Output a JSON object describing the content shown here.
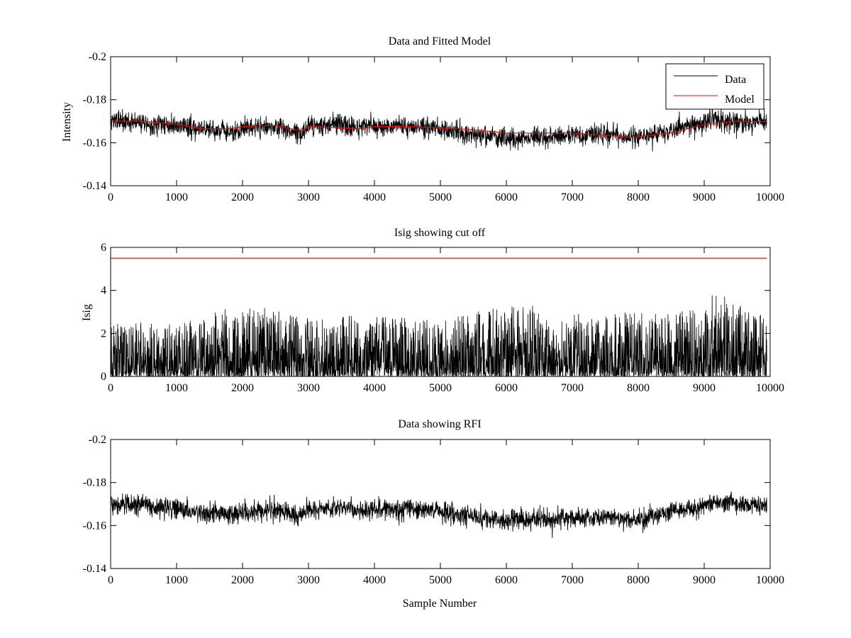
{
  "figure": {
    "background": "#ffffff",
    "data_color": "#000000",
    "model_color": "#ff0000"
  },
  "chart_data": [
    {
      "type": "line",
      "title": "Data and Fitted Model",
      "xlabel": "",
      "ylabel": "Intensity",
      "xlim": [
        0,
        10000
      ],
      "ylim": [
        -0.2,
        -0.14
      ],
      "y_reversed": true,
      "x_ticks": [
        "0",
        "1000",
        "2000",
        "3000",
        "4000",
        "5000",
        "6000",
        "7000",
        "8000",
        "9000",
        "10000"
      ],
      "y_ticks": [
        "-0.14",
        "-0.16",
        "-0.18",
        "-0.2"
      ],
      "grid": false,
      "legend": {
        "position": "top-right",
        "entries": [
          "Data",
          "Model"
        ]
      },
      "series": [
        {
          "name": "Data",
          "color": "#000000",
          "noise": 0.0055,
          "x": [
            0,
            500,
            1000,
            1500,
            1800,
            2000,
            2500,
            2900,
            3000,
            3500,
            3800,
            4000,
            4500,
            5000,
            5500,
            6000,
            6500,
            7000,
            7500,
            8000,
            8500,
            9000,
            9150,
            9500,
            9950
          ],
          "values": [
            -0.17,
            -0.1695,
            -0.168,
            -0.166,
            -0.165,
            -0.1665,
            -0.167,
            -0.165,
            -0.1675,
            -0.1685,
            -0.167,
            -0.1675,
            -0.168,
            -0.1665,
            -0.164,
            -0.162,
            -0.1625,
            -0.1635,
            -0.164,
            -0.1625,
            -0.166,
            -0.169,
            -0.171,
            -0.1695,
            -0.17
          ]
        },
        {
          "name": "Model",
          "color": "#ff0000",
          "x": [
            0,
            500,
            1000,
            1400,
            1800,
            2000,
            2500,
            2900,
            3000,
            3500,
            3800,
            4000,
            4500,
            5000,
            5500,
            6000,
            6500,
            7000,
            7500,
            7900,
            8500,
            9000,
            9500,
            9950
          ],
          "values": [
            -0.17,
            -0.17,
            -0.1685,
            -0.1665,
            -0.1665,
            -0.1675,
            -0.168,
            -0.1655,
            -0.1675,
            -0.167,
            -0.1665,
            -0.1675,
            -0.1675,
            -0.167,
            -0.166,
            -0.1645,
            -0.1645,
            -0.1645,
            -0.1635,
            -0.1625,
            -0.1645,
            -0.1685,
            -0.17,
            -0.1698
          ]
        }
      ]
    },
    {
      "type": "line",
      "title": "Isig showing cut off",
      "xlabel": "",
      "ylabel": "Isig",
      "xlim": [
        0,
        10000
      ],
      "ylim": [
        0,
        6
      ],
      "x_ticks": [
        "0",
        "1000",
        "2000",
        "3000",
        "4000",
        "5000",
        "6000",
        "7000",
        "8000",
        "9000",
        "10000"
      ],
      "y_ticks": [
        "0",
        "2",
        "4",
        "6"
      ],
      "grid": false,
      "threshold": 5.5,
      "series": [
        {
          "name": "",
          "color": "#000000",
          "x": [
            0,
            1000,
            2000,
            3000,
            4000,
            5000,
            5500,
            6000,
            6500,
            7000,
            8000,
            9000,
            9150,
            9950
          ],
          "values": [
            2.6,
            2.4,
            3.4,
            2.7,
            2.9,
            2.6,
            3.0,
            3.3,
            3.3,
            2.9,
            3.0,
            3.1,
            4.0,
            2.7
          ]
        },
        {
          "name": "",
          "color": "#ff0000",
          "x": [
            0,
            9950
          ],
          "values": [
            5.5,
            5.5
          ]
        }
      ]
    },
    {
      "type": "line",
      "title": "Data showing RFI",
      "xlabel": "Sample Number",
      "ylabel": "",
      "xlim": [
        0,
        10000
      ],
      "ylim": [
        -0.2,
        -0.14
      ],
      "y_reversed": true,
      "x_ticks": [
        "0",
        "1000",
        "2000",
        "3000",
        "4000",
        "5000",
        "6000",
        "7000",
        "8000",
        "9000",
        "10000"
      ],
      "y_ticks": [
        "-0.14",
        "-0.16",
        "-0.18",
        "-0.2"
      ],
      "grid": false,
      "series": [
        {
          "name": "",
          "color": "#000000",
          "noise": 0.0055,
          "x": [
            0,
            500,
            1000,
            1500,
            1800,
            2000,
            2500,
            2900,
            3000,
            3500,
            3800,
            4000,
            4500,
            5000,
            5500,
            6000,
            6500,
            7000,
            7500,
            8000,
            8500,
            9000,
            9150,
            9500,
            9950
          ],
          "values": [
            -0.17,
            -0.1695,
            -0.168,
            -0.166,
            -0.165,
            -0.1665,
            -0.167,
            -0.165,
            -0.1675,
            -0.1685,
            -0.167,
            -0.1675,
            -0.168,
            -0.1665,
            -0.164,
            -0.162,
            -0.1625,
            -0.1635,
            -0.164,
            -0.1625,
            -0.166,
            -0.169,
            -0.171,
            -0.1695,
            -0.17
          ]
        }
      ]
    }
  ]
}
